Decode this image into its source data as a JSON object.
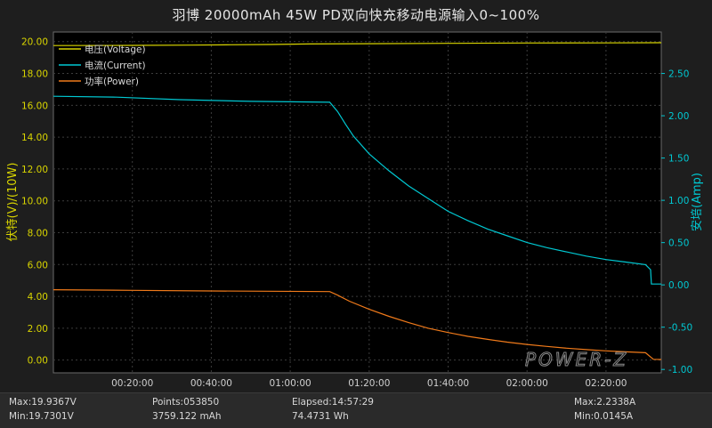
{
  "title": "羽博 20000mAh 45W PD双向快充移动电源输入0~100%",
  "watermark": "POWER-Z",
  "stats": {
    "max_voltage": "Max:19.9367V",
    "min_voltage": "Min:19.7301V",
    "points": "Points:053850",
    "capacity": "3759.122 mAh",
    "elapsed": "Elapsed:14:57:29",
    "energy": "74.4731 Wh",
    "max_current": "Max:2.2338A",
    "min_current": "Min:0.0145A"
  },
  "chart_data": {
    "type": "line",
    "title": "羽博 20000mAh 45W PD双向快充移动电源输入0~100%",
    "xlabel": "",
    "ylabel_left": "伏特(V)/(10W)",
    "ylabel_right": "安培(Amp)",
    "xlim_min": [
      0,
      154
    ],
    "x_ticks_min": [
      20,
      40,
      60,
      80,
      100,
      120,
      140
    ],
    "x_tick_labels": [
      "00:20:00",
      "00:40:00",
      "01:00:00",
      "01:20:00",
      "01:40:00",
      "02:00:00",
      "02:20:00"
    ],
    "ylim_left": [
      -0.8,
      20.6
    ],
    "y_ticks_left": [
      0,
      2,
      4,
      6,
      8,
      10,
      12,
      14,
      16,
      18,
      20
    ],
    "y_tick_labels_left": [
      "0.00",
      "2.00",
      "4.00",
      "6.00",
      "8.00",
      "10.00",
      "12.00",
      "14.00",
      "16.00",
      "18.00",
      "20.00"
    ],
    "ylim_right": [
      -1.04,
      2.99
    ],
    "y_ticks_right": [
      -1,
      -0.5,
      0,
      0.5,
      1,
      1.5,
      2,
      2.5
    ],
    "y_tick_labels_right": [
      "-1.00",
      "-0.50",
      "0.00",
      "0.50",
      "1.00",
      "1.50",
      "2.00",
      "2.50"
    ],
    "grid": true,
    "legend_position": "top-left",
    "series": [
      {
        "name": "电压(Voltage)",
        "axis": "left",
        "color": "#d9d500",
        "points": [
          [
            0,
            19.75
          ],
          [
            20,
            19.76
          ],
          [
            35,
            19.78
          ],
          [
            45,
            19.8
          ],
          [
            55,
            19.82
          ],
          [
            65,
            19.85
          ],
          [
            80,
            19.87
          ],
          [
            100,
            19.89
          ],
          [
            120,
            19.91
          ],
          [
            140,
            19.92
          ],
          [
            154,
            19.93
          ]
        ]
      },
      {
        "name": "电流(Current)",
        "axis": "right",
        "color": "#00c8d2",
        "points": [
          [
            0,
            2.23
          ],
          [
            16,
            2.22
          ],
          [
            32,
            2.19
          ],
          [
            50,
            2.17
          ],
          [
            70,
            2.16
          ],
          [
            72,
            2.05
          ],
          [
            74,
            1.9
          ],
          [
            76,
            1.76
          ],
          [
            80,
            1.55
          ],
          [
            85,
            1.35
          ],
          [
            90,
            1.17
          ],
          [
            95,
            1.02
          ],
          [
            100,
            0.87
          ],
          [
            105,
            0.76
          ],
          [
            110,
            0.66
          ],
          [
            115,
            0.58
          ],
          [
            120,
            0.5
          ],
          [
            125,
            0.44
          ],
          [
            130,
            0.39
          ],
          [
            135,
            0.34
          ],
          [
            140,
            0.3
          ],
          [
            145,
            0.27
          ],
          [
            150,
            0.24
          ],
          [
            151.3,
            0.18
          ],
          [
            151.5,
            0.01
          ],
          [
            154,
            0.01
          ]
        ]
      },
      {
        "name": "功率(Power)",
        "axis": "left",
        "color": "#f07a1a",
        "points": [
          [
            0,
            4.42
          ],
          [
            20,
            4.38
          ],
          [
            40,
            4.34
          ],
          [
            70,
            4.3
          ],
          [
            72,
            4.08
          ],
          [
            75,
            3.7
          ],
          [
            80,
            3.19
          ],
          [
            85,
            2.75
          ],
          [
            90,
            2.35
          ],
          [
            95,
            2.0
          ],
          [
            100,
            1.73
          ],
          [
            105,
            1.49
          ],
          [
            110,
            1.3
          ],
          [
            115,
            1.13
          ],
          [
            120,
            0.98
          ],
          [
            125,
            0.86
          ],
          [
            130,
            0.75
          ],
          [
            135,
            0.66
          ],
          [
            140,
            0.58
          ],
          [
            145,
            0.52
          ],
          [
            150,
            0.46
          ],
          [
            152,
            0.05
          ],
          [
            154,
            0.04
          ]
        ]
      }
    ]
  }
}
